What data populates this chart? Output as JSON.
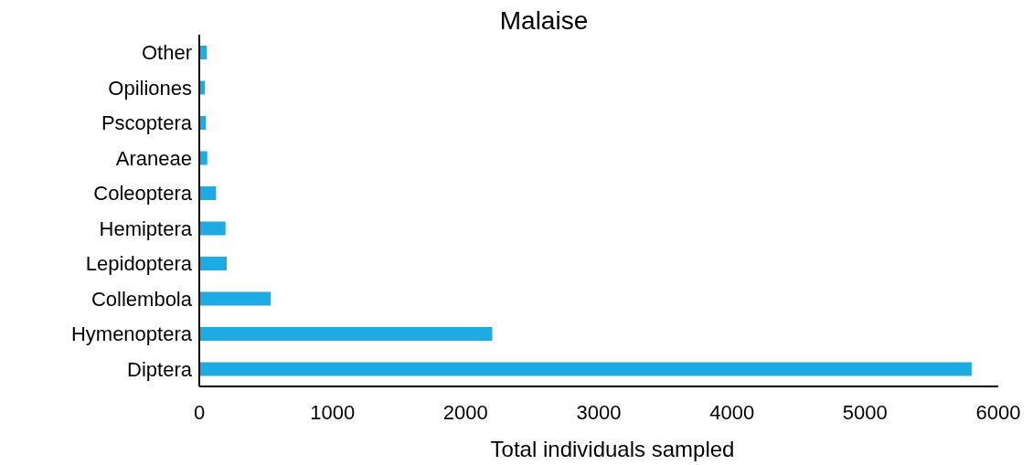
{
  "chart_data": {
    "type": "bar",
    "orientation": "horizontal",
    "title": "Malaise",
    "xlabel": "Total individuals sampled",
    "categories": [
      "Other",
      "Opiliones",
      "Pscoptera",
      "Araneae",
      "Coleoptera",
      "Hemiptera",
      "Lepidoptera",
      "Collembola",
      "Hymenoptera",
      "Diptera"
    ],
    "values": [
      57,
      43,
      50,
      60,
      126,
      197,
      206,
      537,
      2200,
      5800
    ],
    "color": "#1eaae2",
    "xlim": [
      0,
      6000
    ],
    "xticks": [
      0,
      1000,
      2000,
      3000,
      4000,
      5000,
      6000
    ],
    "grid": false,
    "legend": false
  }
}
